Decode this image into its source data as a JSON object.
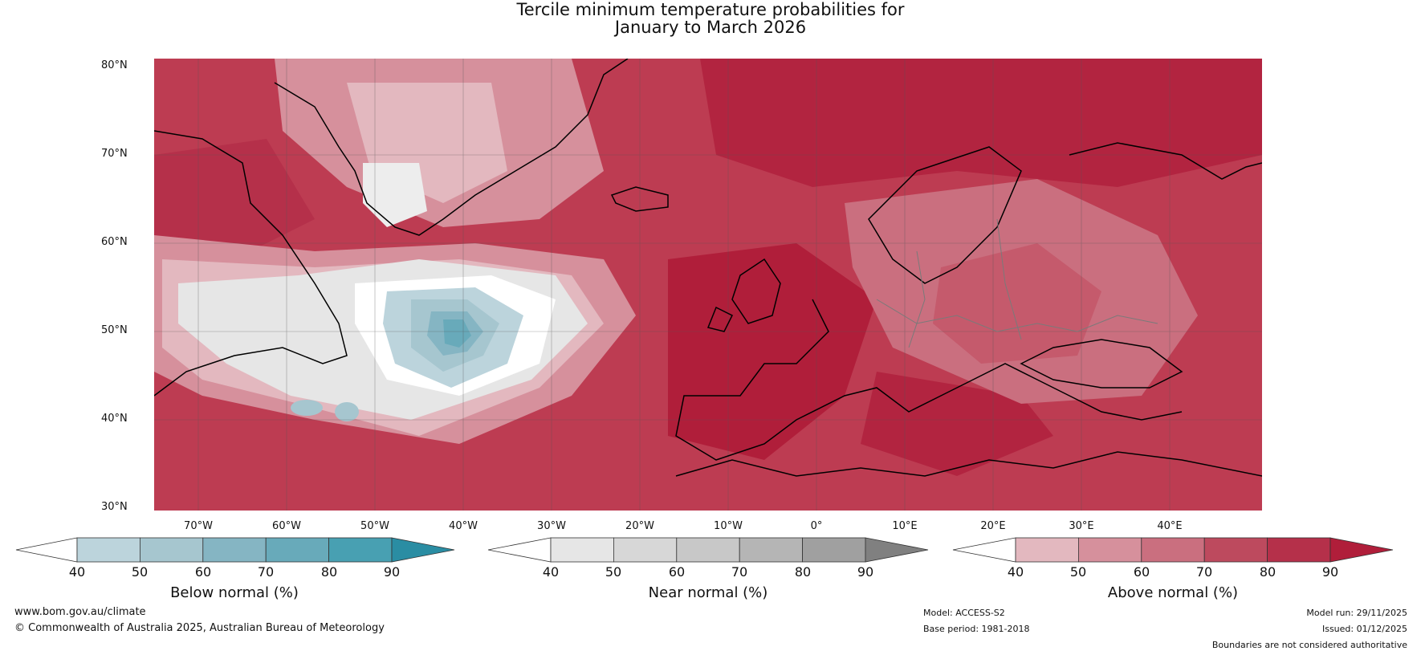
{
  "title": {
    "line1": "Tercile minimum temperature probabilities for",
    "line2": "January to March 2026"
  },
  "map": {
    "region": "North Atlantic and Europe",
    "lat_labels": [
      "80°N",
      "70°N",
      "60°N",
      "50°N",
      "40°N",
      "30°N"
    ],
    "lon_labels": [
      "70°W",
      "60°W",
      "50°W",
      "40°W",
      "30°W",
      "20°W",
      "10°W",
      "0°",
      "10°E",
      "20°E",
      "30°E",
      "40°E"
    ]
  },
  "colorbars": [
    {
      "label": "Below normal (%)",
      "ticks": [
        "40",
        "50",
        "60",
        "70",
        "80",
        "90"
      ],
      "colors": [
        "#ffffff",
        "#bcd4dc",
        "#a6c6cf",
        "#85b5c3",
        "#68aaba",
        "#48a0b2",
        "#2a8da3"
      ]
    },
    {
      "label": "Near normal (%)",
      "ticks": [
        "40",
        "50",
        "60",
        "70",
        "80",
        "90"
      ],
      "colors": [
        "#ffffff",
        "#e6e6e6",
        "#d7d7d7",
        "#c8c8c8",
        "#b5b5b5",
        "#a0a0a0",
        "#808080"
      ]
    },
    {
      "label": "Above normal (%)",
      "ticks": [
        "40",
        "50",
        "60",
        "70",
        "80",
        "90"
      ],
      "colors": [
        "#ffffff",
        "#e3b8bf",
        "#d6909c",
        "#ca6f7f",
        "#bd4a5e",
        "#b5304a",
        "#b01e3a"
      ]
    }
  ],
  "footer": {
    "url": "www.bom.gov.au/climate",
    "copyright": "© Commonwealth of Australia 2025, Australian Bureau of Meteorology",
    "model": "Model: ACCESS-S2",
    "base_period": "Base period: 1981-2018",
    "model_run": "Model run: 29/11/2025",
    "issued": "Issued: 01/12/2025",
    "disclaimer": "Boundaries are not considered authoritative"
  }
}
